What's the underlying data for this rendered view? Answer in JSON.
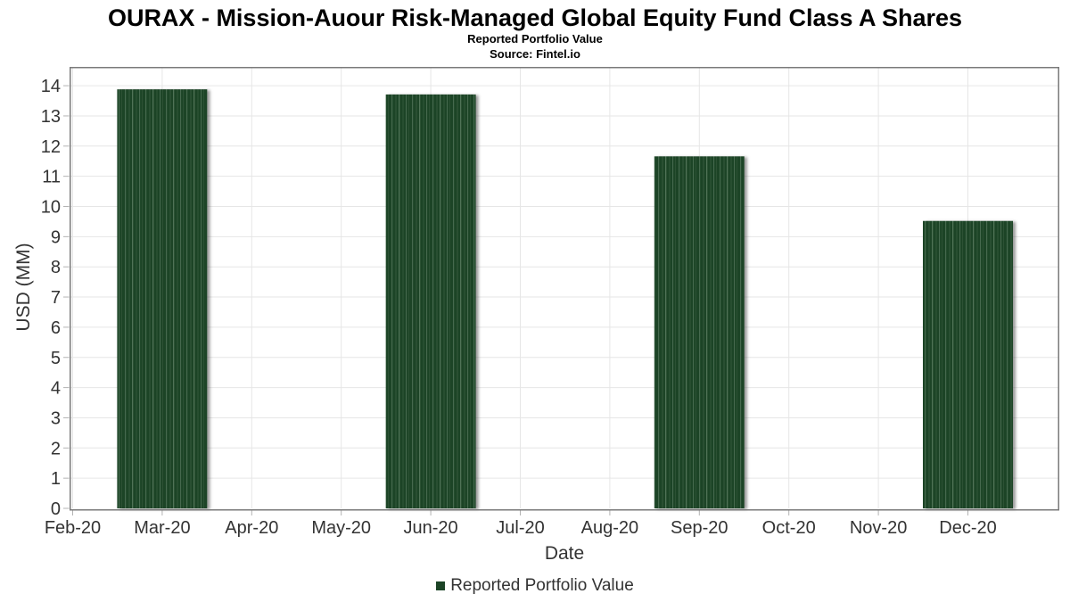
{
  "header": {
    "title": "OURAX - Mission-Auour Risk-Managed Global Equity Fund Class A Shares",
    "subtitle": "Reported Portfolio Value",
    "source": "Source: Fintel.io"
  },
  "legend": {
    "label": "Reported Portfolio Value"
  },
  "chart_data": {
    "type": "bar",
    "title": "OURAX - Mission-Auour Risk-Managed Global Equity Fund Class A Shares",
    "subtitle": "Reported Portfolio Value",
    "source": "Source: Fintel.io",
    "xlabel": "Date",
    "ylabel": "USD (MM)",
    "categories": [
      "Feb-20",
      "Mar-20",
      "Apr-20",
      "May-20",
      "Jun-20",
      "Jul-20",
      "Aug-20",
      "Sep-20",
      "Oct-20",
      "Nov-20",
      "Dec-20"
    ],
    "series": [
      {
        "name": "Reported Portfolio Value",
        "values": [
          null,
          13.88,
          null,
          null,
          13.71,
          null,
          null,
          11.66,
          null,
          null,
          9.52
        ]
      }
    ],
    "ylim": [
      0,
      14
    ],
    "ytick_step": 1,
    "grid": true,
    "legend_position": "bottom"
  },
  "colors": {
    "bar_fill": "#1c4426",
    "bar_stripe_light": "#56785c",
    "bar_stripe_mid": "#4e7055",
    "bar_stripe_dark": "#3c5f44",
    "grid": "#e6e6e6",
    "border": "#7a7a7a",
    "tick": "#b3b3b3",
    "text": "#333333",
    "title_text": "#000000"
  }
}
